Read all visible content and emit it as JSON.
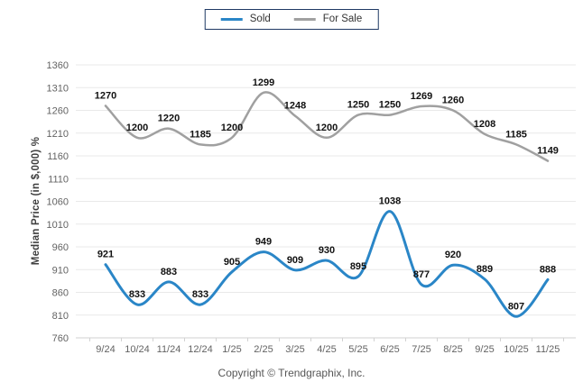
{
  "legend": {
    "items": [
      {
        "label": "Sold"
      },
      {
        "label": "For Sale"
      }
    ]
  },
  "footer": {
    "copyright": "Copyright © Trendgraphix, Inc."
  },
  "chart_data": {
    "type": "line",
    "title": "",
    "xlabel": "",
    "ylabel": "Median Price (in $,000) %",
    "categories": [
      "9/24",
      "10/24",
      "11/24",
      "12/24",
      "1/25",
      "2/25",
      "3/25",
      "4/25",
      "5/25",
      "6/25",
      "7/25",
      "8/25",
      "9/25",
      "10/25",
      "11/25"
    ],
    "series": [
      {
        "name": "Sold",
        "color": "#2a86c7",
        "values": [
          921,
          833,
          883,
          833,
          905,
          949,
          909,
          930,
          895,
          1038,
          877,
          920,
          889,
          807,
          888
        ]
      },
      {
        "name": "For Sale",
        "color": "#a0a0a0",
        "values": [
          1270,
          1200,
          1220,
          1185,
          1200,
          1299,
          1248,
          1200,
          1250,
          1250,
          1269,
          1260,
          1208,
          1185,
          1149
        ]
      }
    ],
    "ylim": [
      760,
      1360
    ],
    "ytick_step": 50,
    "grid": true,
    "smooth": true,
    "data_labels": true,
    "legend_position": "top",
    "colors": {
      "gridline": "#e9e9e9",
      "axis_line": "#d2d2d2",
      "tick_label": "#636363",
      "data_label": "#111111",
      "legend_border": "#1f3864"
    }
  }
}
